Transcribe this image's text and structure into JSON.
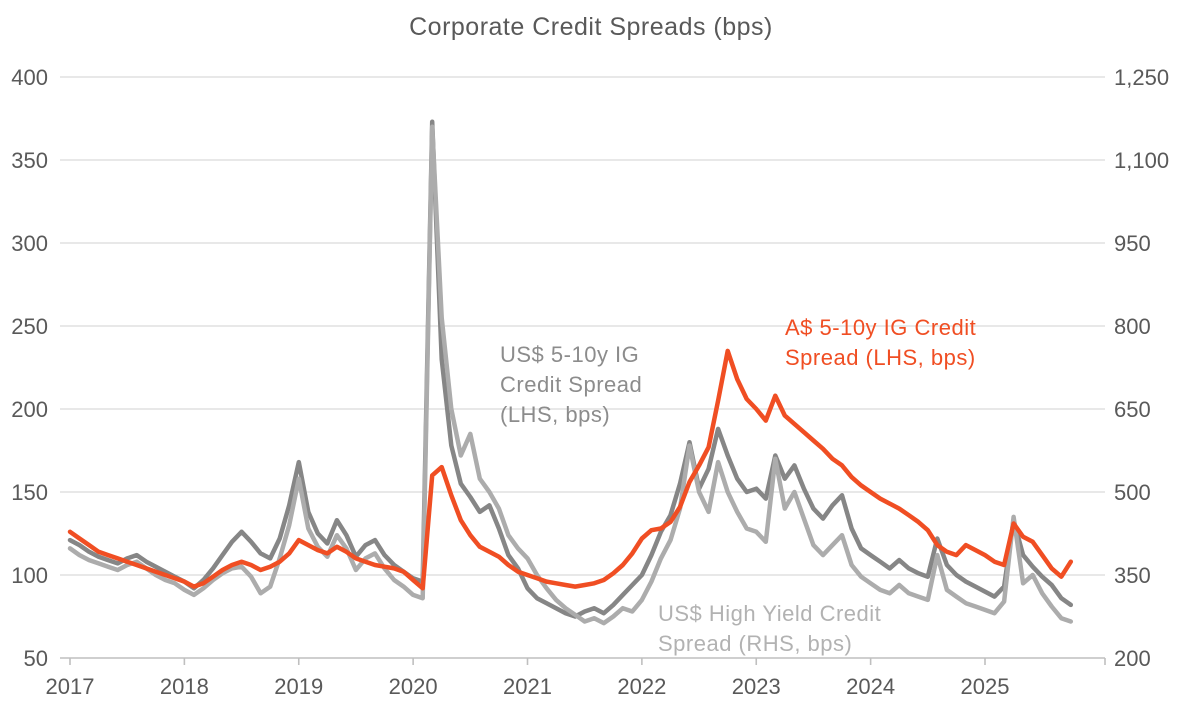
{
  "chart_data": {
    "type": "line",
    "title": "Corporate Credit Spreads (bps)",
    "title_color": "#595959",
    "x_start": "2017-01",
    "x_end": "2025-10",
    "x_frequency": "monthly",
    "x_tick_labels": [
      "2017",
      "2018",
      "2019",
      "2020",
      "2021",
      "2022",
      "2023",
      "2024",
      "2025"
    ],
    "left_axis": {
      "min": 50,
      "max": 400,
      "ticks": [
        50,
        100,
        150,
        200,
        250,
        300,
        350,
        400
      ]
    },
    "right_axis": {
      "min": 200,
      "max": 1250,
      "ticks": [
        200,
        350,
        500,
        650,
        800,
        950,
        1100,
        1250
      ]
    },
    "grid": "horizontal-only",
    "legend": "inline-annotations",
    "axis_label_color": "#595959",
    "grid_color": "#d9d9d9",
    "axis_line_color": "#bfbfbf",
    "series": [
      {
        "name": "US$ 5-10y IG Credit Spread (LHS, bps)",
        "axis": "left",
        "color": "#868686",
        "values": [
          121,
          118,
          114,
          111,
          109,
          107,
          110,
          112,
          108,
          105,
          102,
          99,
          96,
          92,
          97,
          104,
          112,
          120,
          126,
          120,
          113,
          110,
          122,
          142,
          168,
          138,
          125,
          119,
          133,
          124,
          111,
          118,
          121,
          112,
          106,
          102,
          98,
          96,
          373,
          230,
          178,
          155,
          147,
          138,
          142,
          128,
          112,
          104,
          92,
          86,
          83,
          80,
          77,
          75,
          78,
          80,
          77,
          82,
          88,
          94,
          100,
          112,
          126,
          136,
          155,
          180,
          152,
          164,
          188,
          172,
          158,
          150,
          152,
          146,
          172,
          158,
          166,
          152,
          140,
          134,
          142,
          148,
          128,
          116,
          112,
          108,
          104,
          109,
          104,
          101,
          99,
          122,
          106,
          100,
          96,
          93,
          90,
          87,
          93,
          133,
          112,
          105,
          99,
          94,
          86,
          82
        ]
      },
      {
        "name": "US$ High Yield Credit Spread (RHS, bps)",
        "axis": "right",
        "color": "#acacac",
        "values": [
          398,
          386,
          377,
          371,
          365,
          359,
          368,
          374,
          362,
          350,
          341,
          335,
          323,
          314,
          326,
          341,
          353,
          362,
          365,
          347,
          317,
          329,
          380,
          440,
          524,
          434,
          401,
          383,
          422,
          398,
          359,
          380,
          389,
          362,
          341,
          329,
          314,
          308,
          1160,
          815,
          650,
          566,
          605,
          524,
          500,
          470,
          422,
          398,
          380,
          350,
          326,
          305,
          290,
          278,
          266,
          272,
          263,
          275,
          290,
          284,
          305,
          338,
          380,
          413,
          470,
          584,
          500,
          464,
          554,
          500,
          464,
          434,
          428,
          410,
          560,
          470,
          500,
          452,
          404,
          386,
          404,
          422,
          368,
          347,
          335,
          323,
          317,
          332,
          317,
          311,
          305,
          386,
          323,
          311,
          299,
          293,
          287,
          281,
          302,
          455,
          335,
          350,
          317,
          293,
          272,
          266
        ]
      },
      {
        "name": "A$ 5-10y IG Credit Spread (LHS, bps)",
        "axis": "left",
        "color": "#f04e23",
        "values": [
          126,
          122,
          118,
          114,
          112,
          110,
          108,
          106,
          104,
          102,
          100,
          98,
          96,
          93,
          95,
          99,
          103,
          106,
          108,
          106,
          103,
          105,
          108,
          113,
          121,
          118,
          115,
          113,
          117,
          114,
          110,
          108,
          106,
          105,
          104,
          102,
          97,
          92,
          160,
          165,
          148,
          133,
          124,
          117,
          114,
          111,
          106,
          102,
          100,
          98,
          96,
          95,
          94,
          93,
          94,
          95,
          97,
          101,
          106,
          113,
          122,
          127,
          128,
          132,
          141,
          156,
          166,
          177,
          205,
          235,
          218,
          206,
          200,
          193,
          208,
          196,
          191,
          186,
          181,
          176,
          170,
          166,
          159,
          154,
          150,
          146,
          143,
          140,
          136,
          132,
          127,
          118,
          114,
          112,
          118,
          115,
          112,
          108,
          106,
          131,
          123,
          120,
          112,
          104,
          99,
          108
        ]
      }
    ],
    "annotations": [
      {
        "lines": [
          "US$ 5-10y IG",
          "Credit Spread",
          "(LHS, bps)"
        ],
        "color": "#8c8c8c",
        "x": 500,
        "y": 362
      },
      {
        "lines": [
          "A$ 5-10y IG Credit",
          "Spread (LHS, bps)"
        ],
        "color": "#f04e23",
        "x": 785,
        "y": 335
      },
      {
        "lines": [
          "US$ High Yield Credit",
          "Spread (RHS, bps)"
        ],
        "color": "#b2b2b2",
        "x": 658,
        "y": 621
      }
    ]
  }
}
